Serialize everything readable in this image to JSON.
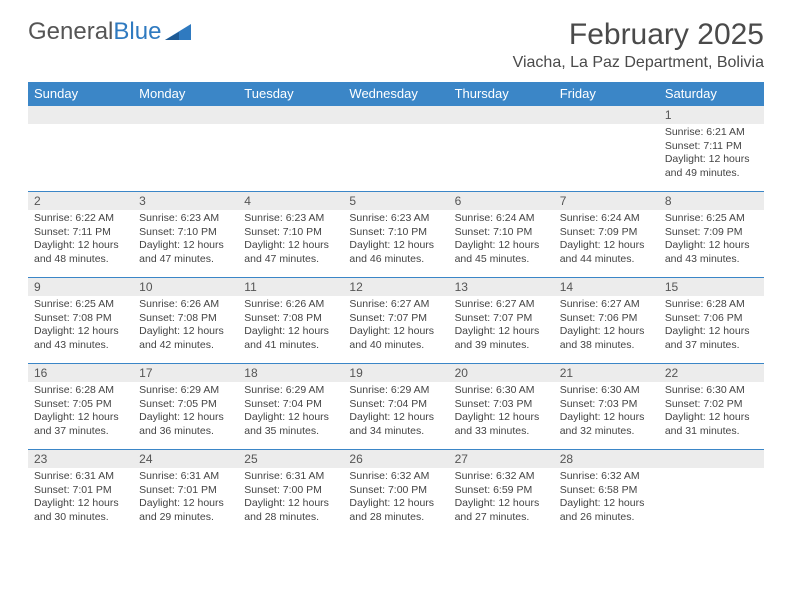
{
  "logo": {
    "text1": "General",
    "text2": "Blue"
  },
  "title": "February 2025",
  "location": "Viacha, La Paz Department, Bolivia",
  "colors": {
    "header_bg": "#3b86c7",
    "header_text": "#ffffff",
    "row_border": "#3b86c7",
    "daynum_bg": "#ececec",
    "text": "#444444",
    "logo_gray": "#555555",
    "logo_blue": "#2f7ac0"
  },
  "day_headers": [
    "Sunday",
    "Monday",
    "Tuesday",
    "Wednesday",
    "Thursday",
    "Friday",
    "Saturday"
  ],
  "weeks": [
    [
      {
        "n": "",
        "lines": []
      },
      {
        "n": "",
        "lines": []
      },
      {
        "n": "",
        "lines": []
      },
      {
        "n": "",
        "lines": []
      },
      {
        "n": "",
        "lines": []
      },
      {
        "n": "",
        "lines": []
      },
      {
        "n": "1",
        "lines": [
          "Sunrise: 6:21 AM",
          "Sunset: 7:11 PM",
          "Daylight: 12 hours and 49 minutes."
        ]
      }
    ],
    [
      {
        "n": "2",
        "lines": [
          "Sunrise: 6:22 AM",
          "Sunset: 7:11 PM",
          "Daylight: 12 hours and 48 minutes."
        ]
      },
      {
        "n": "3",
        "lines": [
          "Sunrise: 6:23 AM",
          "Sunset: 7:10 PM",
          "Daylight: 12 hours and 47 minutes."
        ]
      },
      {
        "n": "4",
        "lines": [
          "Sunrise: 6:23 AM",
          "Sunset: 7:10 PM",
          "Daylight: 12 hours and 47 minutes."
        ]
      },
      {
        "n": "5",
        "lines": [
          "Sunrise: 6:23 AM",
          "Sunset: 7:10 PM",
          "Daylight: 12 hours and 46 minutes."
        ]
      },
      {
        "n": "6",
        "lines": [
          "Sunrise: 6:24 AM",
          "Sunset: 7:10 PM",
          "Daylight: 12 hours and 45 minutes."
        ]
      },
      {
        "n": "7",
        "lines": [
          "Sunrise: 6:24 AM",
          "Sunset: 7:09 PM",
          "Daylight: 12 hours and 44 minutes."
        ]
      },
      {
        "n": "8",
        "lines": [
          "Sunrise: 6:25 AM",
          "Sunset: 7:09 PM",
          "Daylight: 12 hours and 43 minutes."
        ]
      }
    ],
    [
      {
        "n": "9",
        "lines": [
          "Sunrise: 6:25 AM",
          "Sunset: 7:08 PM",
          "Daylight: 12 hours and 43 minutes."
        ]
      },
      {
        "n": "10",
        "lines": [
          "Sunrise: 6:26 AM",
          "Sunset: 7:08 PM",
          "Daylight: 12 hours and 42 minutes."
        ]
      },
      {
        "n": "11",
        "lines": [
          "Sunrise: 6:26 AM",
          "Sunset: 7:08 PM",
          "Daylight: 12 hours and 41 minutes."
        ]
      },
      {
        "n": "12",
        "lines": [
          "Sunrise: 6:27 AM",
          "Sunset: 7:07 PM",
          "Daylight: 12 hours and 40 minutes."
        ]
      },
      {
        "n": "13",
        "lines": [
          "Sunrise: 6:27 AM",
          "Sunset: 7:07 PM",
          "Daylight: 12 hours and 39 minutes."
        ]
      },
      {
        "n": "14",
        "lines": [
          "Sunrise: 6:27 AM",
          "Sunset: 7:06 PM",
          "Daylight: 12 hours and 38 minutes."
        ]
      },
      {
        "n": "15",
        "lines": [
          "Sunrise: 6:28 AM",
          "Sunset: 7:06 PM",
          "Daylight: 12 hours and 37 minutes."
        ]
      }
    ],
    [
      {
        "n": "16",
        "lines": [
          "Sunrise: 6:28 AM",
          "Sunset: 7:05 PM",
          "Daylight: 12 hours and 37 minutes."
        ]
      },
      {
        "n": "17",
        "lines": [
          "Sunrise: 6:29 AM",
          "Sunset: 7:05 PM",
          "Daylight: 12 hours and 36 minutes."
        ]
      },
      {
        "n": "18",
        "lines": [
          "Sunrise: 6:29 AM",
          "Sunset: 7:04 PM",
          "Daylight: 12 hours and 35 minutes."
        ]
      },
      {
        "n": "19",
        "lines": [
          "Sunrise: 6:29 AM",
          "Sunset: 7:04 PM",
          "Daylight: 12 hours and 34 minutes."
        ]
      },
      {
        "n": "20",
        "lines": [
          "Sunrise: 6:30 AM",
          "Sunset: 7:03 PM",
          "Daylight: 12 hours and 33 minutes."
        ]
      },
      {
        "n": "21",
        "lines": [
          "Sunrise: 6:30 AM",
          "Sunset: 7:03 PM",
          "Daylight: 12 hours and 32 minutes."
        ]
      },
      {
        "n": "22",
        "lines": [
          "Sunrise: 6:30 AM",
          "Sunset: 7:02 PM",
          "Daylight: 12 hours and 31 minutes."
        ]
      }
    ],
    [
      {
        "n": "23",
        "lines": [
          "Sunrise: 6:31 AM",
          "Sunset: 7:01 PM",
          "Daylight: 12 hours and 30 minutes."
        ]
      },
      {
        "n": "24",
        "lines": [
          "Sunrise: 6:31 AM",
          "Sunset: 7:01 PM",
          "Daylight: 12 hours and 29 minutes."
        ]
      },
      {
        "n": "25",
        "lines": [
          "Sunrise: 6:31 AM",
          "Sunset: 7:00 PM",
          "Daylight: 12 hours and 28 minutes."
        ]
      },
      {
        "n": "26",
        "lines": [
          "Sunrise: 6:32 AM",
          "Sunset: 7:00 PM",
          "Daylight: 12 hours and 28 minutes."
        ]
      },
      {
        "n": "27",
        "lines": [
          "Sunrise: 6:32 AM",
          "Sunset: 6:59 PM",
          "Daylight: 12 hours and 27 minutes."
        ]
      },
      {
        "n": "28",
        "lines": [
          "Sunrise: 6:32 AM",
          "Sunset: 6:58 PM",
          "Daylight: 12 hours and 26 minutes."
        ]
      },
      {
        "n": "",
        "lines": []
      }
    ]
  ]
}
